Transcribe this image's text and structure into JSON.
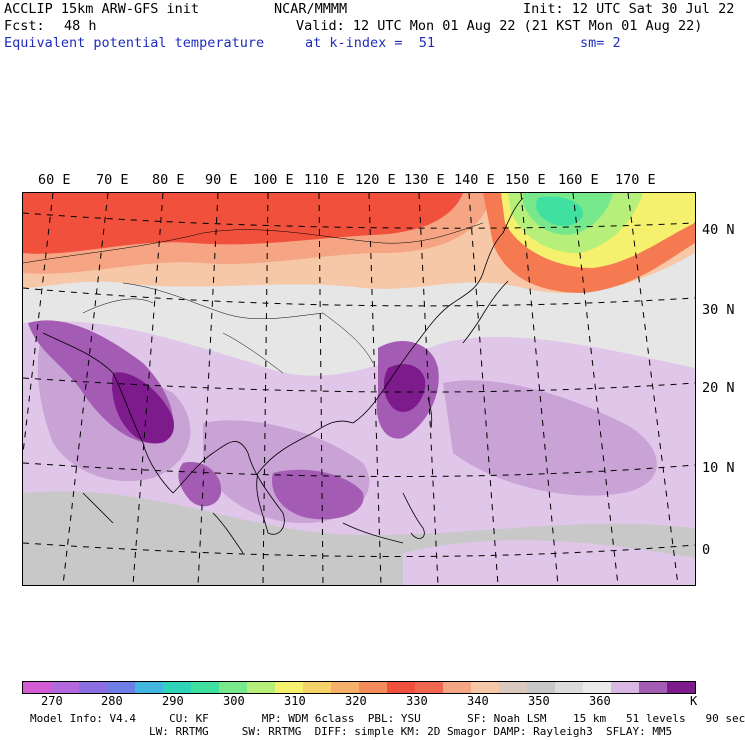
{
  "header": {
    "model_line": "ACCLIP 15km ARW-GFS init",
    "fcst_label": "Fcst:",
    "fcst_value": "48 h",
    "field_name": "Equivalent potential temperature",
    "center": "NCAR/MMMM",
    "valid_line": "Valid: 12 UTC Mon 01 Aug 22 (21 KST Mon 01 Aug 22)",
    "init_line": "Init: 12 UTC Sat 30 Jul 22",
    "level_line": "at k-index =  51",
    "smooth_line": "sm= 2"
  },
  "map": {
    "lon_labels": [
      "60 E",
      "70 E",
      "80 E",
      "90 E",
      "100 E",
      "110 E",
      "120 E",
      "130 E",
      "140 E",
      "150 E",
      "160 E",
      "170 E"
    ],
    "lat_labels": [
      "40 N",
      "30 N",
      "20 N",
      "10 N",
      "0"
    ],
    "colors": {
      "background": "#e6e6e6",
      "lightest_purple": "#e0c6e8",
      "light_purple": "#c9a2d6",
      "mid_purple": "#a45bb4",
      "dark_purple": "#7d1a8c",
      "grey": "#c8c8c8",
      "dark_grey": "#b0b0b0",
      "red": "#f0503c",
      "orange": "#f57a52",
      "salmon": "#f5a584",
      "peach": "#f7c8a8",
      "yellow": "#f5f06e",
      "green_light": "#b6f07a",
      "green": "#78e88c",
      "teal": "#3fe0a0",
      "coast": "#000000",
      "grid": "#000000"
    }
  },
  "colorbar": {
    "colors": [
      "#d35bd3",
      "#b368e0",
      "#8b6fe0",
      "#6f7ee6",
      "#43b6e0",
      "#2ed3b8",
      "#3fe0a0",
      "#78e88c",
      "#b6f07a",
      "#f5f06e",
      "#f5d36a",
      "#f5b06a",
      "#f58c5c",
      "#f0503c",
      "#f0664e",
      "#f5a584",
      "#f7c8a8",
      "#d9c9bf",
      "#c8c8c8",
      "#dcdcdc",
      "#ebebeb",
      "#d9b9e4",
      "#a45bb4",
      "#7d1a8c"
    ],
    "labels": [
      "270",
      "280",
      "290",
      "300",
      "310",
      "320",
      "330",
      "340",
      "350",
      "360"
    ],
    "unit": "K"
  },
  "footer": {
    "line1": "Model Info: V4.4     CU: KF        MP: WDM 6class  PBL: YSU       SF: Noah LSM    15 km   51 levels   90 sec",
    "line2": "LW: RRTMG     SW: RRTMG  DIFF: simple KM: 2D Smagor DAMP: Rayleigh3  SFLAY: MM5"
  }
}
